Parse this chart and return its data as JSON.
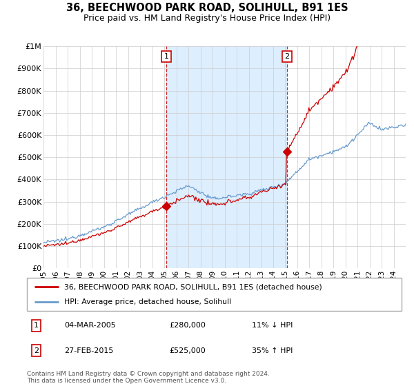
{
  "title": "36, BEECHWOOD PARK ROAD, SOLIHULL, B91 1ES",
  "subtitle": "Price paid vs. HM Land Registry's House Price Index (HPI)",
  "legend_line1": "36, BEECHWOOD PARK ROAD, SOLIHULL, B91 1ES (detached house)",
  "legend_line2": "HPI: Average price, detached house, Solihull",
  "sale1_date": "04-MAR-2005",
  "sale1_price": 280000,
  "sale1_year": 2005.17,
  "sale1_note": "11% ↓ HPI",
  "sale2_date": "27-FEB-2015",
  "sale2_price": 525000,
  "sale2_year": 2015.15,
  "sale2_note": "35% ↑ HPI",
  "footer": "Contains HM Land Registry data © Crown copyright and database right 2024.\nThis data is licensed under the Open Government Licence v3.0.",
  "ylim": [
    0,
    1000000
  ],
  "yticks": [
    0,
    100000,
    200000,
    300000,
    400000,
    500000,
    600000,
    700000,
    800000,
    900000,
    1000000
  ],
  "ytick_labels": [
    "£0",
    "£100K",
    "£200K",
    "£300K",
    "£400K",
    "£500K",
    "£600K",
    "£700K",
    "£800K",
    "£900K",
    "£1M"
  ],
  "xtick_years": [
    1995,
    1996,
    1997,
    1998,
    1999,
    2000,
    2001,
    2002,
    2003,
    2004,
    2005,
    2006,
    2007,
    2008,
    2009,
    2010,
    2011,
    2012,
    2013,
    2014,
    2015,
    2016,
    2017,
    2018,
    2019,
    2020,
    2021,
    2022,
    2023,
    2024
  ],
  "red_color": "#cc0000",
  "blue_color": "#6699cc",
  "shade_color": "#ddeeff",
  "dashed_color": "#cc0000",
  "grid_color": "#cccccc"
}
